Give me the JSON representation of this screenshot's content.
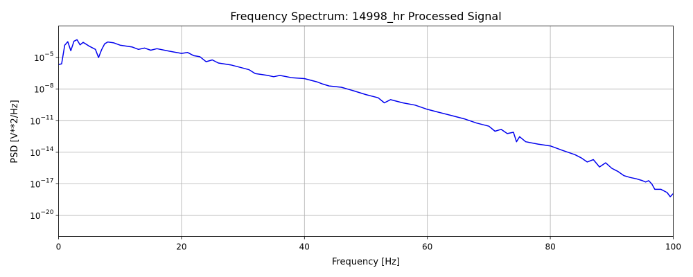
{
  "chart_data": {
    "type": "line",
    "title": "Frequency Spectrum: 14998_hr Processed Signal",
    "xlabel": "Frequency [Hz]",
    "ylabel": "PSD [V**2/Hz]",
    "xlim": [
      0,
      100
    ],
    "ylim": [
      1e-22,
      0.01
    ],
    "yscale": "log",
    "grid": true,
    "x_ticks": [
      0,
      20,
      40,
      60,
      80,
      100
    ],
    "x_tick_labels": [
      "0",
      "20",
      "40",
      "60",
      "80",
      "100"
    ],
    "y_ticks": [
      1e-20,
      1e-17,
      1e-14,
      1e-11,
      1e-08,
      1e-05
    ],
    "y_tick_labels": [
      {
        "base": "10",
        "exp": "−20"
      },
      {
        "base": "10",
        "exp": "−17"
      },
      {
        "base": "10",
        "exp": "−14"
      },
      {
        "base": "10",
        "exp": "−11"
      },
      {
        "base": "10",
        "exp": "−8"
      },
      {
        "base": "10",
        "exp": "−5"
      }
    ],
    "series": [
      {
        "color": "#0000ee",
        "x": [
          0,
          0.5,
          1,
          1.5,
          2,
          2.5,
          3,
          3.5,
          4,
          5,
          6,
          6.5,
          7,
          7.5,
          8,
          9,
          10,
          12,
          13,
          14,
          15,
          16,
          18,
          20,
          21,
          22,
          23,
          24,
          25,
          26,
          28,
          30,
          31,
          32,
          34,
          35,
          36,
          38,
          40,
          42,
          43,
          44,
          46,
          48,
          50,
          52,
          53,
          54,
          56,
          58,
          60,
          62,
          64,
          66,
          68,
          70,
          71,
          72,
          73,
          74,
          74.5,
          75,
          76,
          78,
          80,
          82,
          84,
          85,
          86,
          87,
          88,
          89,
          90,
          91,
          92,
          93,
          94,
          95,
          95.5,
          96,
          96.5,
          97,
          98,
          99,
          99.5,
          100
        ],
        "y": [
          2.2e-06,
          2.5e-06,
          0.00015,
          0.00032,
          4.5e-05,
          0.00035,
          0.0005,
          0.00016,
          0.00028,
          0.00012,
          6e-05,
          1e-05,
          5.5e-05,
          0.0002,
          0.0003,
          0.00025,
          0.00015,
          0.0001,
          6e-05,
          8e-05,
          5e-05,
          7e-05,
          4e-05,
          2.5e-05,
          3e-05,
          1.5e-05,
          1.2e-05,
          4e-06,
          6e-06,
          3e-06,
          2e-06,
          1e-06,
          7e-07,
          3e-07,
          2e-07,
          1.5e-07,
          2e-07,
          1.2e-07,
          1e-07,
          5e-08,
          3e-08,
          2e-08,
          1.5e-08,
          7e-09,
          3e-09,
          1.5e-09,
          5e-10,
          1e-09,
          5e-10,
          3e-10,
          1.2e-10,
          6e-11,
          3e-11,
          1.5e-11,
          6e-12,
          3e-12,
          1e-12,
          1.5e-12,
          6e-13,
          8e-13,
          1e-13,
          3e-13,
          1e-13,
          6e-14,
          4e-14,
          1.5e-14,
          6e-15,
          3e-15,
          1.2e-15,
          2e-15,
          4e-16,
          1e-15,
          3e-16,
          1.5e-16,
          6e-17,
          4e-17,
          3e-17,
          2e-17,
          1.5e-17,
          2e-17,
          1e-17,
          3e-18,
          3e-18,
          1.5e-18,
          6e-19,
          1.2e-18
        ]
      }
    ]
  }
}
